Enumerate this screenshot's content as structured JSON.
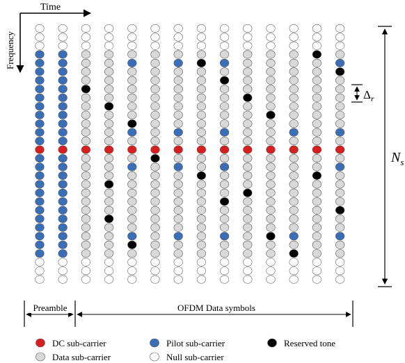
{
  "axes": {
    "time_label": "Time",
    "frequency_label": "Frequency"
  },
  "annotations": {
    "ns_label": "N",
    "ns_subscript": "s",
    "delta_label": "Δ",
    "delta_subscript": "r"
  },
  "sections": {
    "preamble_label": "Preamble",
    "data_label": "OFDM Data symbols"
  },
  "legend": {
    "dc": "DC sub-carrier",
    "pilot": "Pilot sub-carrier",
    "reserved": "Reserved tone",
    "data": "Data sub-carrier",
    "null": "Null sub-carrier"
  },
  "colors": {
    "dc": "#d81e1e",
    "pilot": "#3a6fb8",
    "reserved": "#000000",
    "data": "#d9d9d9",
    "null": "#ffffff"
  },
  "grid": {
    "columns": 14,
    "rows": 30,
    "preamble_columns": 2,
    "null_rows_top": [
      0,
      1,
      2
    ],
    "null_rows_bottom": [
      27,
      28,
      29
    ],
    "dc_row": 14,
    "data_columns": [
      {
        "pilots": [],
        "reserved": [
          7
        ]
      },
      {
        "pilots": [],
        "reserved": [
          9,
          18,
          22
        ]
      },
      {
        "pilots": [
          4,
          12,
          16,
          24
        ],
        "reserved": [
          11,
          25
        ]
      },
      {
        "pilots": [],
        "reserved": [
          2,
          15
        ]
      },
      {
        "pilots": [
          4,
          12,
          16,
          24
        ],
        "reserved": []
      },
      {
        "pilots": [],
        "reserved": [
          4,
          17
        ]
      },
      {
        "pilots": [
          4,
          12,
          16,
          24
        ],
        "reserved": [
          6,
          20
        ]
      },
      {
        "pilots": [],
        "reserved": [
          8,
          19
        ]
      },
      {
        "pilots": [],
        "reserved": [
          10,
          24
        ]
      },
      {
        "pilots": [
          12,
          24
        ],
        "reserved": [
          26
        ]
      },
      {
        "pilots": [],
        "reserved": [
          3,
          17
        ]
      },
      {
        "pilots": [
          4,
          12,
          16,
          24
        ],
        "reserved": [
          5,
          21
        ]
      },
      {
        "pilots": [],
        "reserved": [
          7,
          22
        ]
      },
      {
        "pilots": [],
        "reserved": []
      }
    ]
  }
}
